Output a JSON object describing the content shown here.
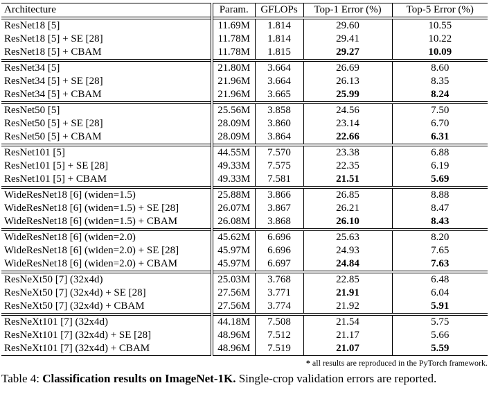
{
  "table": {
    "columns": [
      "Architecture",
      "Param.",
      "GFLOPs",
      "Top-1 Error (%)",
      "Top-5 Error (%)"
    ],
    "groups": [
      {
        "rows": [
          {
            "arch": "ResNet18 [5]",
            "params": "11.69M",
            "gflops": "1.814",
            "top1": "29.60",
            "top5": "10.55",
            "b1": false,
            "b5": false
          },
          {
            "arch": "ResNet18 [5] + SE [28]",
            "params": "11.78M",
            "gflops": "1.814",
            "top1": "29.41",
            "top5": "10.22",
            "b1": false,
            "b5": false
          },
          {
            "arch": "ResNet18 [5] + CBAM",
            "params": "11.78M",
            "gflops": "1.815",
            "top1": "29.27",
            "top5": "10.09",
            "b1": true,
            "b5": true
          }
        ]
      },
      {
        "rows": [
          {
            "arch": "ResNet34 [5]",
            "params": "21.80M",
            "gflops": "3.664",
            "top1": "26.69",
            "top5": "8.60",
            "b1": false,
            "b5": false
          },
          {
            "arch": "ResNet34 [5] + SE [28]",
            "params": "21.96M",
            "gflops": "3.664",
            "top1": "26.13",
            "top5": "8.35",
            "b1": false,
            "b5": false
          },
          {
            "arch": "ResNet34 [5] + CBAM",
            "params": "21.96M",
            "gflops": "3.665",
            "top1": "25.99",
            "top5": "8.24",
            "b1": true,
            "b5": true
          }
        ]
      },
      {
        "rows": [
          {
            "arch": "ResNet50 [5]",
            "params": "25.56M",
            "gflops": "3.858",
            "top1": "24.56",
            "top5": "7.50",
            "b1": false,
            "b5": false
          },
          {
            "arch": "ResNet50 [5] + SE [28]",
            "params": "28.09M",
            "gflops": "3.860",
            "top1": "23.14",
            "top5": "6.70",
            "b1": false,
            "b5": false
          },
          {
            "arch": "ResNet50 [5] + CBAM",
            "params": "28.09M",
            "gflops": "3.864",
            "top1": "22.66",
            "top5": "6.31",
            "b1": true,
            "b5": true
          }
        ]
      },
      {
        "rows": [
          {
            "arch": "ResNet101 [5]",
            "params": "44.55M",
            "gflops": "7.570",
            "top1": "23.38",
            "top5": "6.88",
            "b1": false,
            "b5": false
          },
          {
            "arch": "ResNet101 [5] + SE [28]",
            "params": "49.33M",
            "gflops": "7.575",
            "top1": "22.35",
            "top5": "6.19",
            "b1": false,
            "b5": false
          },
          {
            "arch": "ResNet101 [5] + CBAM",
            "params": "49.33M",
            "gflops": "7.581",
            "top1": "21.51",
            "top5": "5.69",
            "b1": true,
            "b5": true
          }
        ]
      },
      {
        "rows": [
          {
            "arch": "WideResNet18 [6] (widen=1.5)",
            "params": "25.88M",
            "gflops": "3.866",
            "top1": "26.85",
            "top5": "8.88",
            "b1": false,
            "b5": false
          },
          {
            "arch": "WideResNet18 [6] (widen=1.5) + SE [28]",
            "params": "26.07M",
            "gflops": "3.867",
            "top1": "26.21",
            "top5": "8.47",
            "b1": false,
            "b5": false
          },
          {
            "arch": "WideResNet18 [6] (widen=1.5) + CBAM",
            "params": "26.08M",
            "gflops": "3.868",
            "top1": "26.10",
            "top5": "8.43",
            "b1": true,
            "b5": true
          }
        ]
      },
      {
        "rows": [
          {
            "arch": "WideResNet18 [6] (widen=2.0)",
            "params": "45.62M",
            "gflops": "6.696",
            "top1": "25.63",
            "top5": "8.20",
            "b1": false,
            "b5": false
          },
          {
            "arch": "WideResNet18 [6] (widen=2.0) + SE [28]",
            "params": "45.97M",
            "gflops": "6.696",
            "top1": "24.93",
            "top5": "7.65",
            "b1": false,
            "b5": false
          },
          {
            "arch": "WideResNet18 [6] (widen=2.0) + CBAM",
            "params": "45.97M",
            "gflops": "6.697",
            "top1": "24.84",
            "top5": "7.63",
            "b1": true,
            "b5": true
          }
        ]
      },
      {
        "rows": [
          {
            "arch": "ResNeXt50 [7] (32x4d)",
            "params": "25.03M",
            "gflops": "3.768",
            "top1": "22.85",
            "top5": "6.48",
            "b1": false,
            "b5": false
          },
          {
            "arch": "ResNeXt50 [7] (32x4d) + SE [28]",
            "params": "27.56M",
            "gflops": "3.771",
            "top1": "21.91",
            "top5": "6.04",
            "b1": true,
            "b5": false
          },
          {
            "arch": "ResNeXt50 [7] (32x4d) + CBAM",
            "params": "27.56M",
            "gflops": "3.774",
            "top1": "21.92",
            "top5": "5.91",
            "b1": false,
            "b5": true
          }
        ]
      },
      {
        "rows": [
          {
            "arch": "ResNeXt101 [7] (32x4d)",
            "params": "44.18M",
            "gflops": "7.508",
            "top1": "21.54",
            "top5": "5.75",
            "b1": false,
            "b5": false
          },
          {
            "arch": "ResNeXt101 [7] (32x4d) + SE [28]",
            "params": "48.96M",
            "gflops": "7.512",
            "top1": "21.17",
            "top5": "5.66",
            "b1": false,
            "b5": false
          },
          {
            "arch": "ResNeXt101 [7] (32x4d) + CBAM",
            "params": "48.96M",
            "gflops": "7.519",
            "top1": "21.07",
            "top5": "5.59",
            "b1": true,
            "b5": true
          }
        ]
      }
    ]
  },
  "footnote": {
    "marker": "*",
    "text": " all results are reproduced in the PyTorch framework."
  },
  "caption": {
    "label": "Table 4: ",
    "title": "Classification results on ImageNet-1K.",
    "rest": " Single-crop validation errors are reported."
  }
}
